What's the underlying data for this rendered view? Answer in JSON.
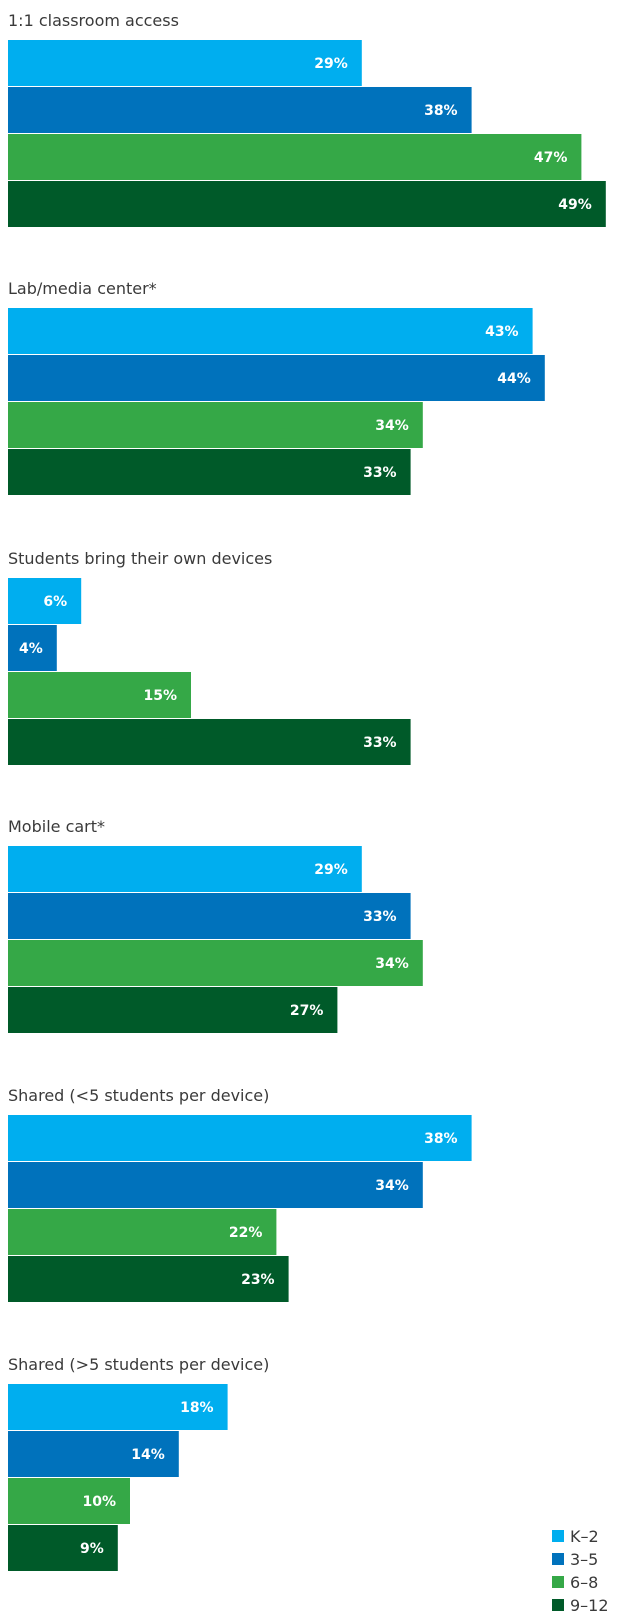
{
  "chart_data": {
    "type": "bar",
    "orientation": "horizontal",
    "categories": [
      "1:1 classroom access",
      "Lab/media center*",
      "Students bring their own devices",
      "Mobile cart*",
      "Shared (<5 students per device)",
      "Shared  (>5 students per device)"
    ],
    "series": [
      {
        "name": "K–2",
        "color": "#00aeef",
        "values": [
          29,
          43,
          6,
          29,
          38,
          18
        ]
      },
      {
        "name": "3–5",
        "color": "#0072bc",
        "values": [
          38,
          44,
          4,
          33,
          34,
          14
        ]
      },
      {
        "name": "6–8",
        "color": "#35a847",
        "values": [
          47,
          34,
          15,
          34,
          22,
          10
        ]
      },
      {
        "name": "9–12",
        "color": "#005a29",
        "values": [
          49,
          33,
          33,
          27,
          23,
          9
        ]
      }
    ],
    "value_suffix": "%",
    "xlim": [
      0,
      50
    ],
    "grid": false,
    "legend_position": "bottom-right"
  }
}
